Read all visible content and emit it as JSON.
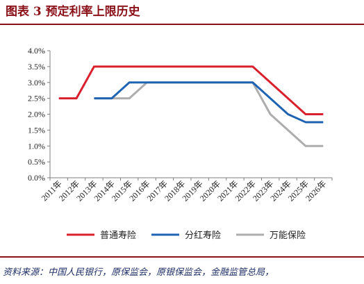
{
  "figure": {
    "title": "图表 3   预定利率上限历史",
    "source": "资料来源：中国人民银行，原保监会，原银保监会，金融监管总局，"
  },
  "chart_data": {
    "type": "line",
    "title": "",
    "xlabel": "",
    "ylabel": "",
    "categories": [
      "2011年",
      "2012年",
      "2013年",
      "2014年",
      "2015年",
      "2016年",
      "2017年",
      "2018年",
      "2019年",
      "2020年",
      "2021年",
      "2022年",
      "2023年",
      "2024年",
      "2025年",
      "2026年"
    ],
    "ylim": [
      0,
      4.0
    ],
    "y_ticks": [
      0,
      0.5,
      1.0,
      1.5,
      2.0,
      2.5,
      3.0,
      3.5,
      4.0
    ],
    "y_tick_labels": [
      "0.0%",
      "0.5%",
      "1.0%",
      "1.5%",
      "2.0%",
      "2.5%",
      "3.0%",
      "3.5%",
      "4.0%"
    ],
    "grid": false,
    "legend_position": "bottom",
    "series": [
      {
        "name": "普通寿险",
        "color": "#d9202c",
        "values": [
          2.5,
          2.5,
          3.5,
          3.5,
          3.5,
          3.5,
          3.5,
          3.5,
          3.5,
          3.5,
          3.5,
          3.5,
          3.0,
          2.5,
          2.0,
          2.0
        ]
      },
      {
        "name": "分红寿险",
        "color": "#1f63b3",
        "values": [
          null,
          null,
          2.5,
          2.5,
          3.0,
          3.0,
          3.0,
          3.0,
          3.0,
          3.0,
          3.0,
          3.0,
          2.5,
          2.0,
          1.75,
          1.75
        ]
      },
      {
        "name": "万能保险",
        "color": "#adadad",
        "values": [
          null,
          null,
          2.5,
          2.5,
          2.5,
          3.0,
          3.0,
          3.0,
          3.0,
          3.0,
          3.0,
          3.0,
          2.0,
          1.5,
          1.0,
          1.0
        ]
      }
    ]
  }
}
